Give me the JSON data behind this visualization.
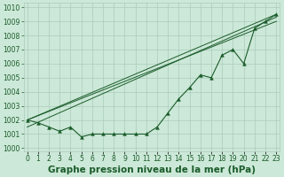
{
  "title": "Graphe pression niveau de la mer (hPa)",
  "x_labels": [
    "0",
    "1",
    "2",
    "3",
    "4",
    "5",
    "6",
    "7",
    "8",
    "9",
    "10",
    "11",
    "12",
    "13",
    "14",
    "15",
    "16",
    "17",
    "18",
    "19",
    "20",
    "21",
    "22",
    "23"
  ],
  "pressure_data": [
    1002.0,
    1001.8,
    1001.5,
    1001.2,
    1001.5,
    1000.8,
    1001.0,
    1001.0,
    1001.0,
    1001.0,
    1001.0,
    1001.0,
    1001.5,
    1002.5,
    1003.5,
    1004.3,
    1005.2,
    1005.0,
    1006.6,
    1007.0,
    1006.0,
    1008.5,
    1009.0,
    1009.5
  ],
  "trend_line1": [
    [
      0,
      1002.0
    ],
    [
      23,
      1009.5
    ]
  ],
  "trend_line2": [
    [
      0,
      1002.0
    ],
    [
      23,
      1009.0
    ]
  ],
  "trend_line3": [
    [
      0,
      1001.5
    ],
    [
      23,
      1009.3
    ]
  ],
  "ylim": [
    999.8,
    1010.3
  ],
  "yticks": [
    1000,
    1001,
    1002,
    1003,
    1004,
    1005,
    1006,
    1007,
    1008,
    1009,
    1010
  ],
  "xlim": [
    -0.3,
    23.3
  ],
  "bg_color": "#cce8d8",
  "grid_color": "#aaccbb",
  "line_color": "#1a5c2a",
  "title_color": "#1a5c2a",
  "title_fontsize": 7.5,
  "tick_fontsize": 5.5
}
